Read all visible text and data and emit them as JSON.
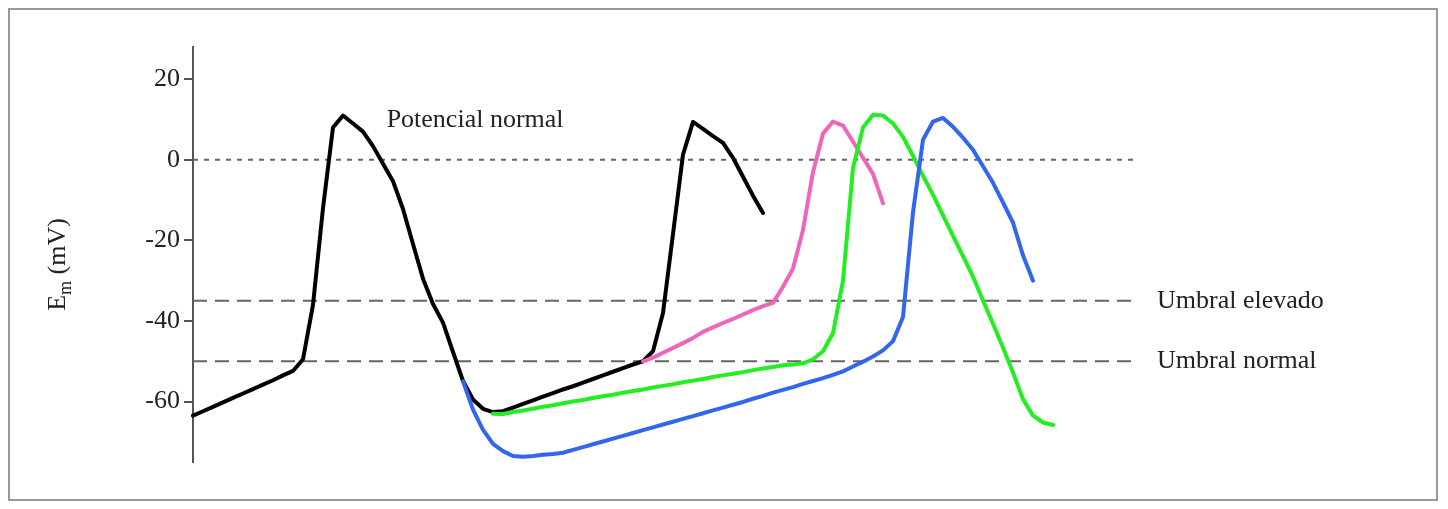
{
  "chart_data": {
    "type": "line",
    "ylabel": "E$_{m}$ (mV)",
    "annotations": [
      "Potencial normal"
    ],
    "categories": [
      null,
      null,
      null,
      null,
      null,
      null,
      null,
      null,
      null,
      null,
      null,
      null,
      null,
      null,
      null,
      null,
      null,
      null,
      null,
      null,
      null,
      null,
      null,
      null,
      null,
      null,
      null,
      null,
      null,
      null,
      null,
      null,
      null,
      null,
      null,
      null,
      null,
      null,
      null,
      null,
      null,
      null,
      null,
      null,
      null,
      null,
      null,
      null,
      null,
      null,
      null,
      null,
      null,
      null,
      null,
      null,
      null,
      null,
      null,
      null,
      null,
      null,
      null,
      null,
      null,
      null,
      null,
      null,
      null,
      null,
      null,
      null,
      null,
      null,
      null,
      null,
      null,
      null,
      null,
      null,
      null,
      null,
      null,
      null,
      null,
      null,
      null,
      null,
      null,
      null,
      null,
      null,
      null,
      null,
      null
    ],
    "series": [
      {
        "color": "#000000",
        "values": [
          -63.5,
          -62.4,
          -61.3,
          -60.2,
          -59.1,
          -58.0,
          -56.9,
          -55.8,
          -54.7,
          -53.5,
          -52.4,
          -49.5,
          -36,
          -12,
          8,
          11,
          9,
          7,
          3.4,
          -1,
          -5.3,
          -12.2,
          -20.9,
          -29.5,
          -35.8,
          -40.4,
          -47.7,
          -54.9,
          -59.5,
          -61.8,
          -62.6,
          -62.4,
          -61.5,
          -60.6,
          -59.7,
          -58.8,
          -57.9,
          -57,
          -56.2,
          -55.3,
          -54.4,
          -53.5,
          -52.6,
          -51.7,
          -50.8,
          -50,
          -47.5,
          -38,
          -18.4,
          1.3,
          9.4,
          7.7,
          5.9,
          4.2,
          0.5,
          -4.2,
          -8.9,
          -13.2,
          null,
          null,
          null,
          null,
          null,
          null,
          null,
          null,
          null,
          null,
          null,
          null,
          null,
          null,
          null,
          null,
          null,
          null,
          null,
          null,
          null,
          null,
          null,
          null,
          null,
          null,
          null,
          null,
          null,
          null,
          null,
          null,
          null,
          null,
          null,
          null,
          null
        ]
      },
      {
        "color": "#ee66bb",
        "values": [
          null,
          null,
          null,
          null,
          null,
          null,
          null,
          null,
          null,
          null,
          null,
          null,
          null,
          null,
          null,
          null,
          null,
          null,
          null,
          null,
          null,
          null,
          null,
          null,
          null,
          null,
          null,
          null,
          null,
          null,
          null,
          null,
          null,
          null,
          null,
          null,
          null,
          null,
          null,
          null,
          null,
          null,
          null,
          null,
          null,
          -50,
          -49.1,
          -47.9,
          -46.7,
          -45.5,
          -44.2,
          -42.7,
          -41.6,
          -40.5,
          -39.5,
          -38.4,
          -37.3,
          -36.3,
          -35.5,
          -31.5,
          -27,
          -17.4,
          -3,
          6.5,
          9.5,
          8.5,
          4.5,
          0.5,
          -3.5,
          -10.8,
          null,
          null,
          null,
          null,
          null,
          null,
          null,
          null,
          null,
          null,
          null,
          null,
          null,
          null,
          null,
          null,
          null,
          null,
          null,
          null,
          null,
          null,
          null,
          null,
          null
        ]
      },
      {
        "color": "#22ee22",
        "values": [
          null,
          null,
          null,
          null,
          null,
          null,
          null,
          null,
          null,
          null,
          null,
          null,
          null,
          null,
          null,
          null,
          null,
          null,
          null,
          null,
          null,
          null,
          null,
          null,
          null,
          null,
          null,
          null,
          null,
          null,
          -63,
          -63.1,
          -62.6,
          -62.2,
          -61.8,
          -61.3,
          -60.9,
          -60.4,
          -60,
          -59.6,
          -59.1,
          -58.7,
          -58.3,
          -57.8,
          -57.4,
          -57,
          -56.5,
          -56.1,
          -55.7,
          -55.2,
          -54.8,
          -54.4,
          -53.9,
          -53.5,
          -53.1,
          -52.7,
          -52.2,
          -51.8,
          -51.4,
          -51,
          -50.8,
          -50.5,
          -49.5,
          -47.5,
          -43,
          -30,
          -2,
          8,
          11.2,
          11,
          9,
          5.7,
          1,
          -4,
          -8.7,
          -13.8,
          -18.9,
          -23.9,
          -29,
          -34.9,
          -40.7,
          -46.6,
          -52.8,
          -59.4,
          -63.5,
          -65.2,
          -65.8,
          null,
          null,
          null,
          null,
          null,
          null,
          null,
          null
        ]
      },
      {
        "color": "#3366ee",
        "values": [
          null,
          null,
          null,
          null,
          null,
          null,
          null,
          null,
          null,
          null,
          null,
          null,
          null,
          null,
          null,
          null,
          null,
          null,
          null,
          null,
          null,
          null,
          null,
          null,
          null,
          null,
          null,
          -55,
          -62,
          -67,
          -70.5,
          -72.3,
          -73.5,
          -73.7,
          -73.5,
          -73.2,
          -73,
          -72.7,
          -72,
          -71.3,
          -70.6,
          -69.9,
          -69.2,
          -68.5,
          -67.8,
          -67.1,
          -66.4,
          -65.7,
          -65,
          -64.3,
          -63.6,
          -62.9,
          -62.2,
          -61.5,
          -60.8,
          -60.1,
          -59.3,
          -58.6,
          -57.8,
          -57.1,
          -56.4,
          -55.6,
          -54.9,
          -54.2,
          -53.4,
          -52.5,
          -51.3,
          -50.1,
          -48.8,
          -47.3,
          -45,
          -39,
          -13,
          5,
          9.5,
          10.4,
          8.2,
          5.5,
          2.5,
          -1.6,
          -5.7,
          -10.6,
          -15.6,
          -23.7,
          -30,
          null,
          null,
          null,
          null,
          null,
          null,
          null,
          null,
          null,
          null
        ]
      }
    ],
    "ylim": [
      -75,
      28
    ],
    "yticks": [
      -60,
      -40,
      -20,
      0,
      20
    ],
    "tick_labels": "y",
    "marker": "none",
    "line_style": "solid",
    "ref_lines": [
      {
        "axis": "y",
        "value": 0,
        "color": "#666666",
        "line_style": "dotted"
      },
      {
        "axis": "y",
        "value": -35,
        "label": "Umbral elevado",
        "color": "#666666",
        "line_style": "dashed"
      },
      {
        "axis": "y",
        "value": -50,
        "label": "Umbral normal",
        "color": "#666666",
        "line_style": "dashed"
      }
    ]
  }
}
